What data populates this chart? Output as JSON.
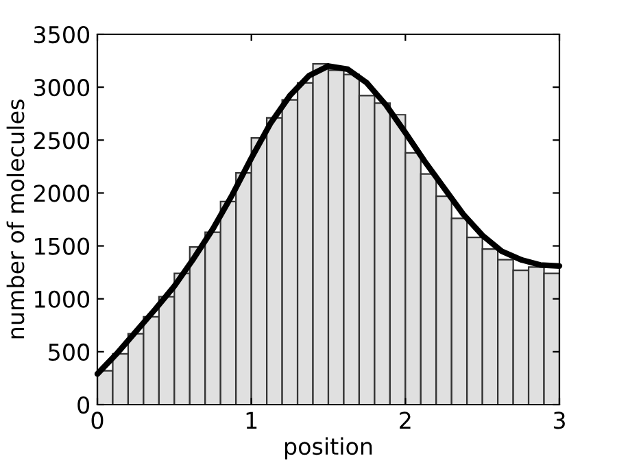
{
  "chart_data": {
    "type": "histogram",
    "xlabel": "position",
    "ylabel": "number of molecules",
    "bins": [
      0,
      0.1,
      0.2,
      0.3,
      0.4,
      0.5,
      0.6,
      0.7,
      0.8,
      0.9,
      1.0,
      1.1,
      1.2,
      1.3,
      1.4,
      1.5,
      1.6,
      1.7,
      1.8,
      1.9,
      2.0,
      2.1,
      2.2,
      2.3,
      2.4,
      2.5,
      2.6,
      2.7,
      2.8,
      2.9,
      3.0
    ],
    "values": [
      320,
      480,
      670,
      830,
      1020,
      1240,
      1490,
      1630,
      1920,
      2190,
      2520,
      2710,
      2880,
      3040,
      3220,
      3160,
      3120,
      2920,
      2850,
      2740,
      2380,
      2180,
      1970,
      1760,
      1580,
      1470,
      1370,
      1270,
      1300,
      1240
    ],
    "color": "#e0e0e0",
    "series": [
      {
        "type": "line",
        "color": "#000000",
        "x": [
          0,
          0.125,
          0.25,
          0.375,
          0.5,
          0.625,
          0.75,
          0.875,
          1.0,
          1.125,
          1.25,
          1.375,
          1.5,
          1.625,
          1.75,
          1.875,
          2.0,
          2.125,
          2.25,
          2.375,
          2.5,
          2.625,
          2.75,
          2.875,
          3.0
        ],
        "values": [
          290,
          480,
          690,
          900,
          1120,
          1380,
          1660,
          1980,
          2330,
          2660,
          2920,
          3110,
          3200,
          3170,
          3040,
          2830,
          2570,
          2300,
          2050,
          1800,
          1600,
          1450,
          1370,
          1320,
          1310
        ]
      }
    ],
    "xlim": [
      0,
      3
    ],
    "xticks": [
      0,
      1,
      2,
      3
    ],
    "ylim": [
      0,
      3500
    ],
    "yticks": [
      0,
      500,
      1000,
      1500,
      2000,
      2500,
      3000,
      3500
    ],
    "grid": false,
    "legend": false
  }
}
